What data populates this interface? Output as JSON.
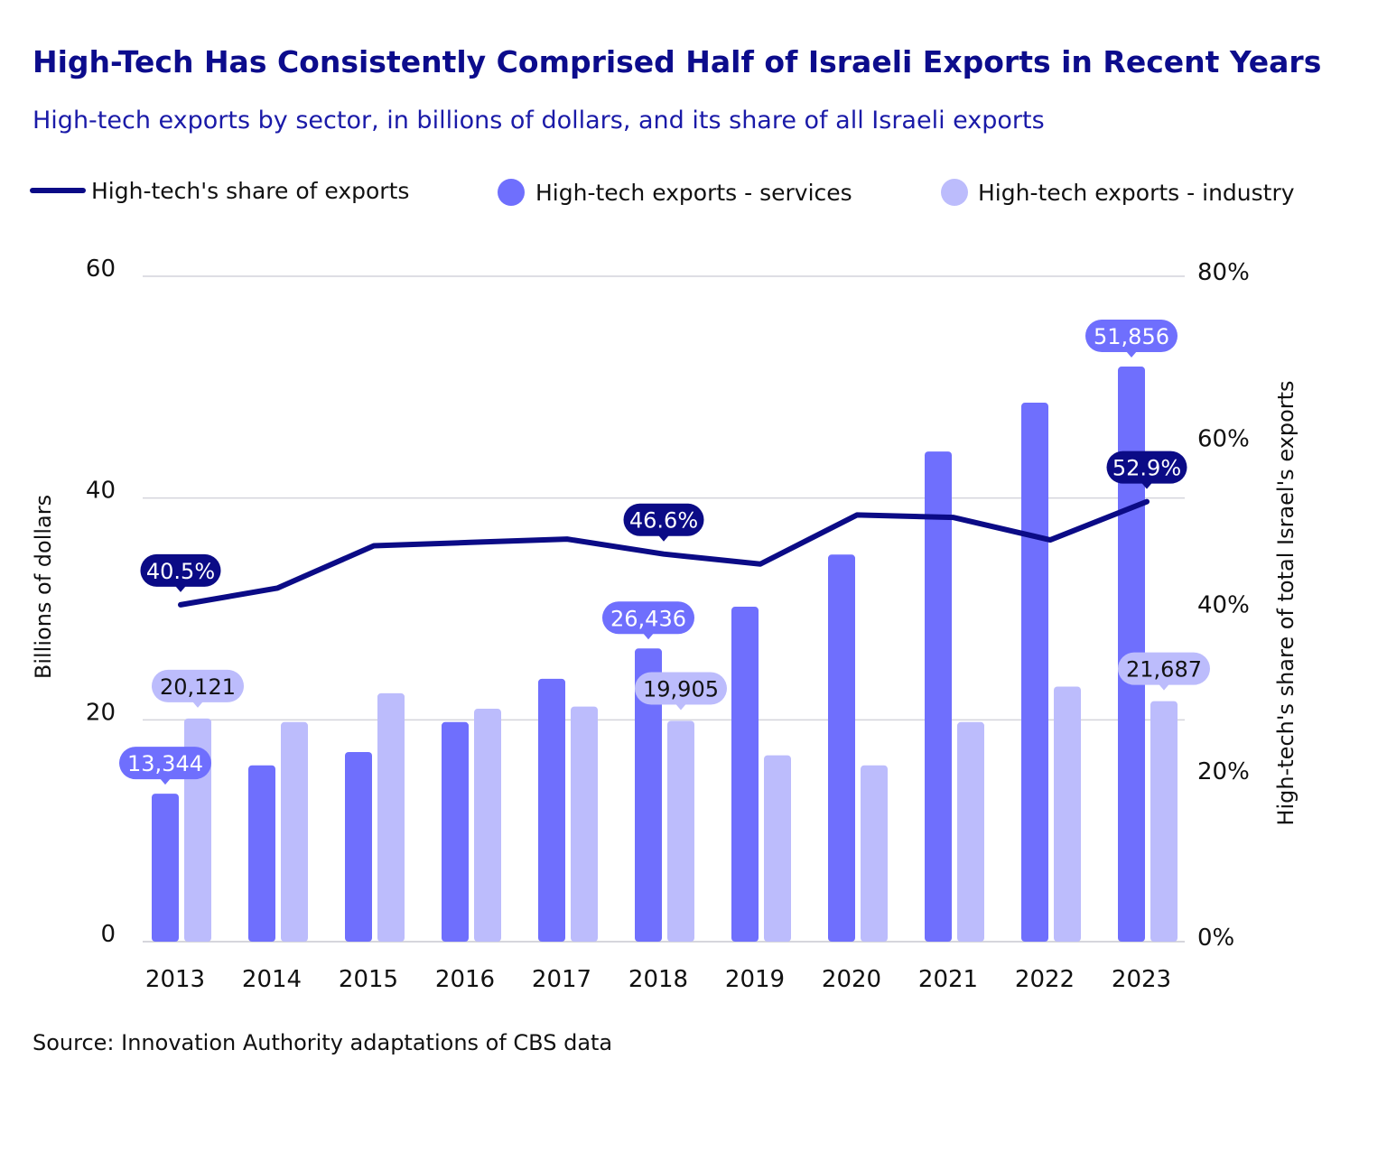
{
  "chart_data": {
    "type": "bar+line",
    "title": "High-Tech Has Consistently Comprised Half of Israeli Exports in Recent Years",
    "subtitle": "High-tech exports by sector, in billions of dollars, and its share of all Israeli exports",
    "source": "Source: Innovation Authority adaptations of CBS data",
    "categories": [
      "2013",
      "2014",
      "2015",
      "2016",
      "2017",
      "2018",
      "2019",
      "2020",
      "2021",
      "2022",
      "2023"
    ],
    "ylabel": "Billions of dollars",
    "ylabel_right": "High-tech's share of total Israel's exports",
    "ylim": [
      0,
      60
    ],
    "yticks": [
      "0",
      "20",
      "40",
      "60"
    ],
    "ylim_right": [
      0,
      80
    ],
    "yticks_right": [
      "0%",
      "20%",
      "40%",
      "60%",
      "80%"
    ],
    "grid": true,
    "legend_position": "top",
    "series": [
      {
        "name": "High-tech's share of exports",
        "type": "line",
        "axis": "right",
        "color": "#0b0b86",
        "values": [
          40.5,
          42.5,
          47.6,
          48.0,
          48.4,
          46.6,
          45.4,
          51.3,
          51.0,
          48.3,
          52.9
        ]
      },
      {
        "name": "High-tech exports - services",
        "type": "bar",
        "axis": "left",
        "color": "#6f6ffd",
        "values": [
          13.344,
          15.9,
          17.1,
          19.8,
          23.7,
          26.436,
          30.2,
          34.9,
          44.2,
          48.6,
          51.856
        ]
      },
      {
        "name": "High-tech exports - industry",
        "type": "bar",
        "axis": "left",
        "color": "#bcbcfc",
        "values": [
          20.121,
          19.8,
          22.4,
          21.0,
          21.2,
          19.905,
          16.8,
          15.9,
          19.8,
          23.0,
          21.687
        ]
      }
    ],
    "annotations": [
      {
        "series": 0,
        "index": 0,
        "text": "40.5%"
      },
      {
        "series": 0,
        "index": 5,
        "text": "46.6%"
      },
      {
        "series": 0,
        "index": 10,
        "text": "52.9%"
      },
      {
        "series": 1,
        "index": 0,
        "text": "13,344"
      },
      {
        "series": 1,
        "index": 5,
        "text": "26,436"
      },
      {
        "series": 1,
        "index": 10,
        "text": "51,856"
      },
      {
        "series": 2,
        "index": 0,
        "text": "20,121"
      },
      {
        "series": 2,
        "index": 5,
        "text": "19,905"
      },
      {
        "series": 2,
        "index": 10,
        "text": "21,687"
      }
    ]
  }
}
